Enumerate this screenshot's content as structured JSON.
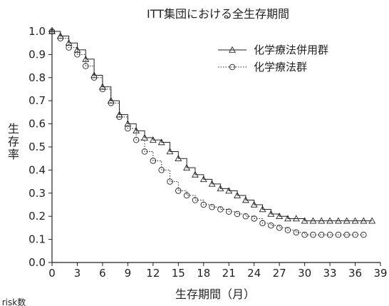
{
  "chart_data": {
    "type": "line",
    "title": "ITT集団における全生存期間",
    "xlabel": "生存期間（月）",
    "ylabel": "生存率",
    "xlim": [
      0,
      39
    ],
    "ylim": [
      0.0,
      1.0
    ],
    "xticks": [
      0,
      3,
      6,
      9,
      12,
      15,
      18,
      21,
      24,
      27,
      30,
      33,
      36,
      39
    ],
    "yticks": [
      "0.0",
      "0.1",
      "0.2",
      "0.3",
      "0.4",
      "0.5",
      "0.6",
      "0.7",
      "0.8",
      "0.9",
      "1.0"
    ],
    "grid": false,
    "legend_position": "top-right",
    "bottom_left_label": "r risk数",
    "series": [
      {
        "name": "化学療法併用群",
        "marker": "triangle",
        "line_style": "solid",
        "color": "#222222",
        "x": [
          0,
          1,
          2,
          3,
          4,
          5,
          6,
          7,
          8,
          9,
          10,
          11,
          12,
          13,
          14,
          15,
          16,
          17,
          18,
          19,
          20,
          21,
          22,
          23,
          24,
          25,
          26,
          27,
          28,
          29,
          30,
          31,
          32,
          33,
          34,
          35,
          36,
          37,
          38
        ],
        "y": [
          1.0,
          0.98,
          0.95,
          0.92,
          0.88,
          0.81,
          0.76,
          0.7,
          0.64,
          0.6,
          0.57,
          0.54,
          0.53,
          0.52,
          0.48,
          0.45,
          0.41,
          0.38,
          0.36,
          0.34,
          0.32,
          0.31,
          0.29,
          0.27,
          0.25,
          0.23,
          0.21,
          0.2,
          0.19,
          0.19,
          0.18,
          0.18,
          0.18,
          0.18,
          0.18,
          0.18,
          0.18,
          0.18,
          0.18
        ]
      },
      {
        "name": "化学療法群",
        "marker": "circle",
        "line_style": "dotted",
        "color": "#222222",
        "x": [
          0,
          1,
          2,
          3,
          4,
          5,
          6,
          7,
          8,
          9,
          10,
          11,
          12,
          13,
          14,
          15,
          16,
          17,
          18,
          19,
          20,
          21,
          22,
          23,
          24,
          25,
          26,
          27,
          28,
          29,
          30,
          31,
          32,
          33,
          34,
          35,
          36,
          37
        ],
        "y": [
          1.0,
          0.97,
          0.93,
          0.9,
          0.85,
          0.8,
          0.75,
          0.69,
          0.63,
          0.58,
          0.53,
          0.48,
          0.44,
          0.4,
          0.35,
          0.31,
          0.29,
          0.27,
          0.25,
          0.24,
          0.23,
          0.22,
          0.21,
          0.2,
          0.19,
          0.17,
          0.16,
          0.15,
          0.14,
          0.13,
          0.12,
          0.12,
          0.12,
          0.12,
          0.12,
          0.12,
          0.12,
          0.12
        ]
      }
    ]
  }
}
